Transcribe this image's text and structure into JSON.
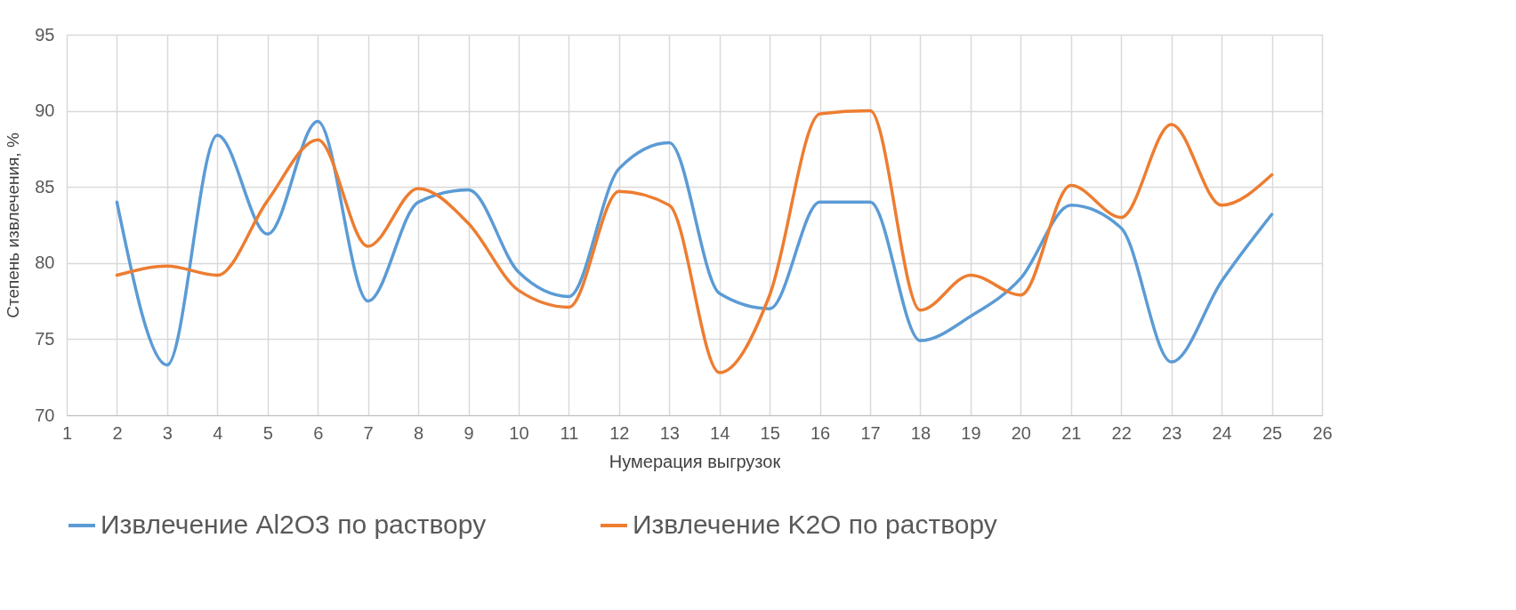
{
  "chart_data": {
    "type": "line",
    "xlabel": "Нумерация выгрузок",
    "ylabel": "Степень извлечения, %",
    "x": [
      2,
      3,
      4,
      5,
      6,
      7,
      8,
      9,
      10,
      11,
      12,
      13,
      14,
      15,
      16,
      17,
      18,
      19,
      20,
      21,
      22,
      23,
      24,
      25
    ],
    "series": [
      {
        "name": "Извлечение Al2O3 по раствору",
        "color": "#5b9bd5",
        "values": [
          84.0,
          73.3,
          88.4,
          81.9,
          89.3,
          77.5,
          84.0,
          84.8,
          79.4,
          77.8,
          86.2,
          87.9,
          78.0,
          77.0,
          84.0,
          84.0,
          74.9,
          76.5,
          79.0,
          83.8,
          82.3,
          73.5,
          78.8,
          83.2
        ]
      },
      {
        "name": "Извлечение K2O по раствору",
        "color": "#ed7d31",
        "values": [
          79.2,
          79.8,
          79.2,
          84.1,
          88.1,
          81.1,
          84.9,
          82.6,
          78.2,
          77.1,
          84.7,
          83.8,
          72.8,
          77.9,
          89.8,
          90.0,
          76.9,
          79.2,
          77.9,
          85.1,
          83.0,
          89.1,
          83.8,
          85.8
        ]
      }
    ],
    "xlim": [
      1,
      26
    ],
    "xticks": [
      1,
      2,
      3,
      4,
      5,
      6,
      7,
      8,
      9,
      10,
      11,
      12,
      13,
      14,
      15,
      16,
      17,
      18,
      19,
      20,
      21,
      22,
      23,
      24,
      25,
      26
    ],
    "ylim": [
      70,
      95
    ],
    "yticks": [
      70,
      75,
      80,
      85,
      90,
      95
    ],
    "grid": true,
    "legend": "bottom",
    "marker": "none",
    "line_style": "solid"
  }
}
